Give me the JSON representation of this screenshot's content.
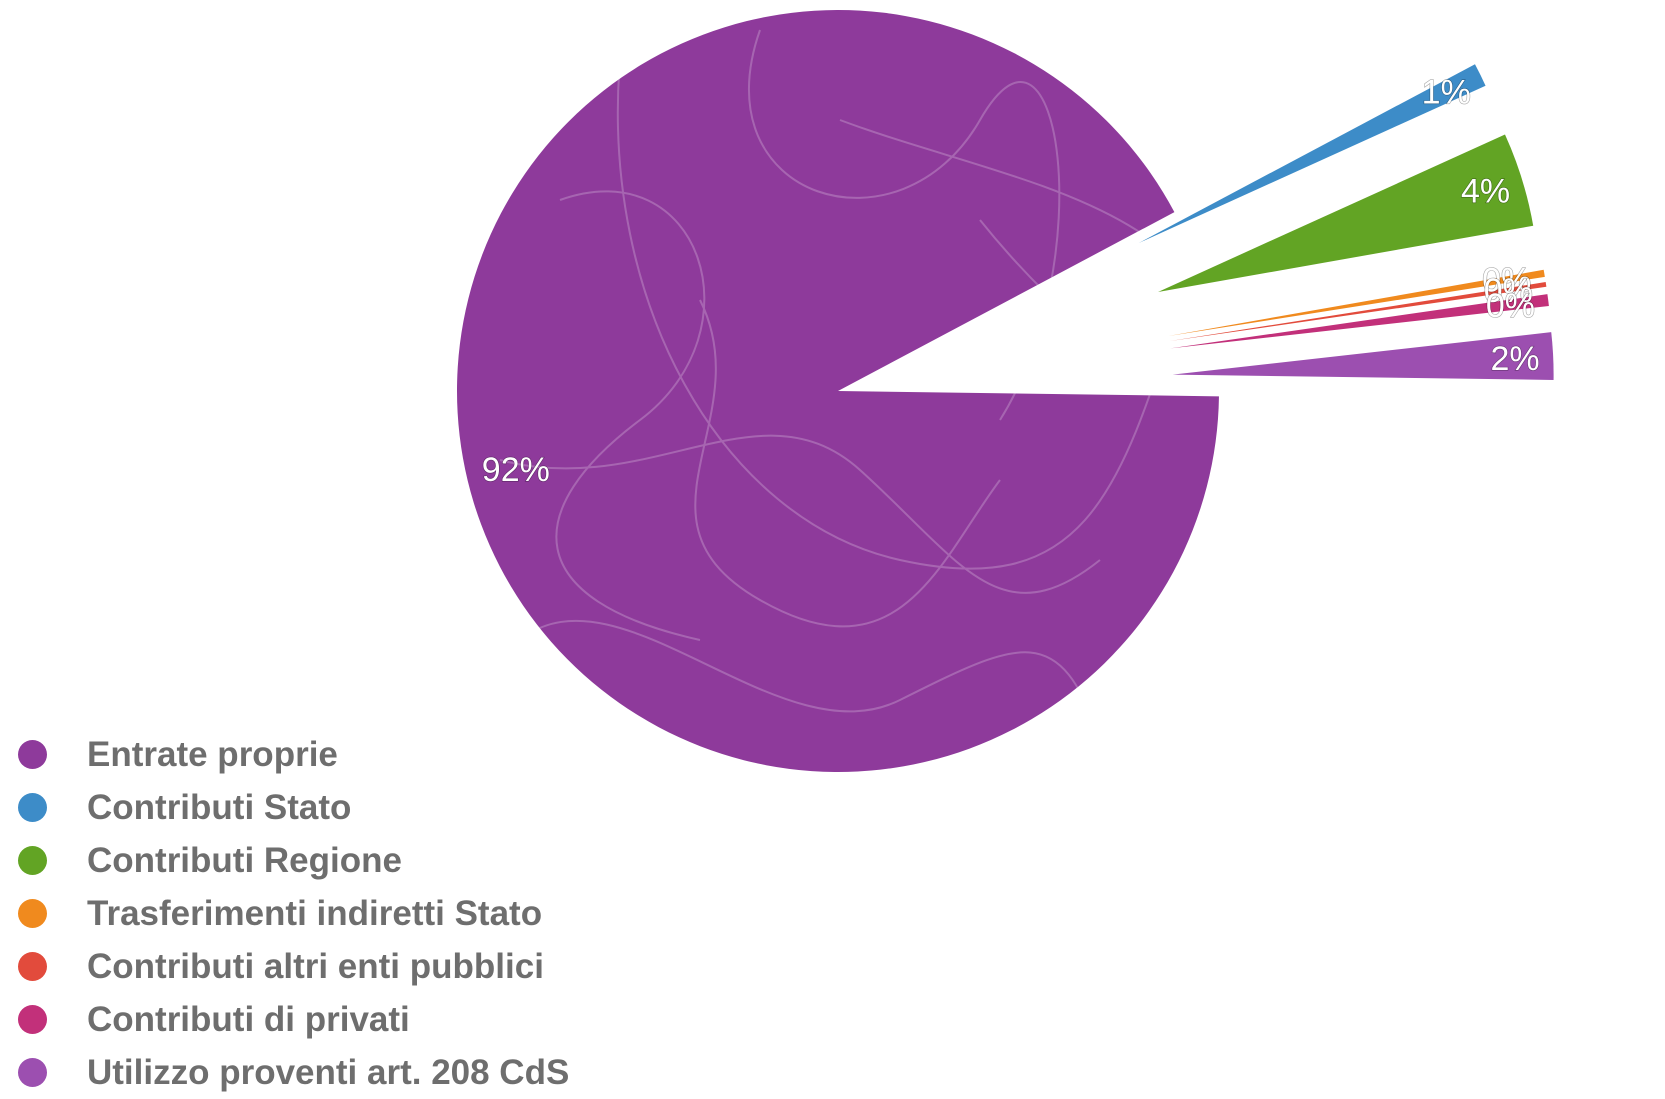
{
  "chart_data": {
    "type": "pie",
    "title": "",
    "slices": [
      {
        "label": "Entrate proprie",
        "value": 92,
        "value_label": "92%",
        "color": "#8e3a9b"
      },
      {
        "label": "Contributi Stato",
        "value": 1,
        "value_label": "1%",
        "color": "#3d8cc8"
      },
      {
        "label": "Contributi Regione",
        "value": 4,
        "value_label": "4%",
        "color": "#62a424"
      },
      {
        "label": "Trasferimenti indiretti Stato",
        "value": 0.3,
        "value_label": "0%",
        "color": "#f08a1e"
      },
      {
        "label": "Contributi altri enti pubblici",
        "value": 0.2,
        "value_label": "0%",
        "color": "#e24b3c"
      },
      {
        "label": "Contributi di privati",
        "value": 0.5,
        "value_label": "0%",
        "color": "#c2307a"
      },
      {
        "label": "Utilizzo proventi art. 208 CdS",
        "value": 2,
        "value_label": "2%",
        "color": "#9c4fb0"
      }
    ],
    "legend_position": "bottom-left",
    "exploded_slices": true
  }
}
